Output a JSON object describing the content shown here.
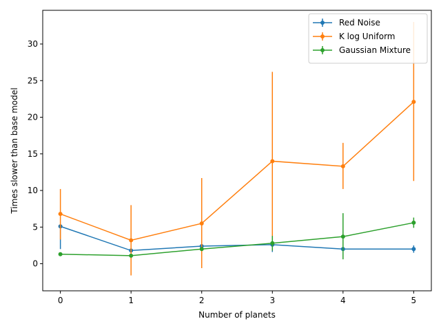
{
  "chart_data": {
    "type": "line",
    "title": "",
    "xlabel": "Number of planets",
    "ylabel": "Times slower than base model",
    "xlim": [
      -0.25,
      5.25
    ],
    "ylim": [
      -3.7,
      34.6
    ],
    "xticks": [
      0,
      1,
      2,
      3,
      4,
      5
    ],
    "yticks": [
      0,
      5,
      10,
      15,
      20,
      25,
      30
    ],
    "legend_position": "top-right",
    "series": [
      {
        "name": "Red Noise",
        "color": "#1f77b4",
        "x": [
          0,
          1,
          2,
          3,
          4,
          5
        ],
        "y": [
          5.1,
          1.8,
          2.4,
          2.6,
          2.0,
          2.0
        ],
        "err_low": [
          2.0,
          1.6,
          2.2,
          1.6,
          1.8,
          1.5
        ],
        "err_high": [
          5.3,
          2.0,
          2.6,
          2.8,
          2.2,
          2.5
        ]
      },
      {
        "name": "K log Uniform",
        "color": "#ff7f0e",
        "x": [
          0,
          1,
          2,
          3,
          4,
          5
        ],
        "y": [
          6.8,
          3.2,
          5.5,
          14.0,
          13.3,
          22.1
        ],
        "err_low": [
          3.3,
          -1.6,
          -0.6,
          1.8,
          10.2,
          11.3
        ],
        "err_high": [
          10.2,
          8.0,
          11.7,
          26.2,
          16.5,
          33.0
        ]
      },
      {
        "name": "Gaussian Mixture",
        "color": "#2ca02c",
        "x": [
          0,
          1,
          2,
          3,
          4,
          5
        ],
        "y": [
          1.3,
          1.1,
          2.0,
          2.8,
          3.7,
          5.6
        ],
        "err_low": [
          1.2,
          1.0,
          1.8,
          1.8,
          0.6,
          4.9
        ],
        "err_high": [
          1.4,
          1.2,
          2.2,
          3.8,
          6.9,
          6.3
        ]
      }
    ]
  }
}
